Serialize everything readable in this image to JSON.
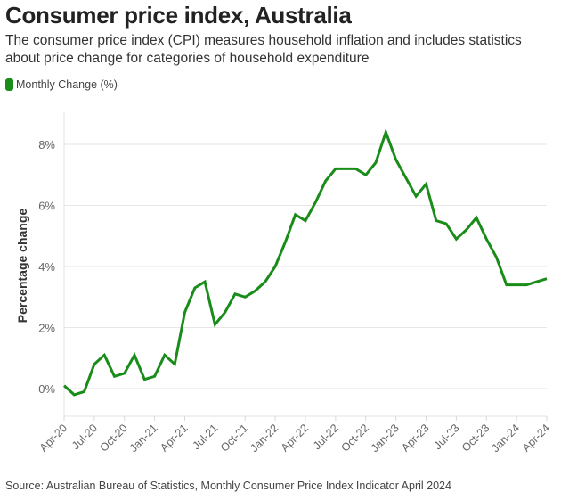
{
  "header": {
    "title": "Consumer price index, Australia",
    "subtitle": "The consumer price index (CPI) measures household inflation and includes statistics about price change for categories of household expenditure"
  },
  "legend": {
    "label": "Monthly Change (%)",
    "color": "#1a8c1a"
  },
  "footer": {
    "source": "Source: Australian Bureau of Statistics, Monthly Consumer Price Index Indicator April 2024"
  },
  "chart_data": {
    "type": "line",
    "title": "Consumer price index, Australia",
    "xlabel": "",
    "ylabel": "Percentage change",
    "ylim": [
      -1,
      9
    ],
    "y_ticks": [
      0,
      2,
      4,
      6,
      8
    ],
    "y_tick_labels": [
      "0%",
      "2%",
      "4%",
      "6%",
      "8%"
    ],
    "x_tick_labels": [
      "Apr-20",
      "Jul-20",
      "Oct-20",
      "Jan-21",
      "Apr-21",
      "Jul-21",
      "Oct-21",
      "Jan-22",
      "Apr-22",
      "Jul-22",
      "Oct-22",
      "Jan-23",
      "Apr-23",
      "Jul-23",
      "Oct-23",
      "Jan-24",
      "Apr-24"
    ],
    "grid": true,
    "legend_position": "top-left",
    "x": [
      "Apr-20",
      "May-20",
      "Jun-20",
      "Jul-20",
      "Aug-20",
      "Sep-20",
      "Oct-20",
      "Nov-20",
      "Dec-20",
      "Jan-21",
      "Feb-21",
      "Mar-21",
      "Apr-21",
      "May-21",
      "Jun-21",
      "Jul-21",
      "Aug-21",
      "Sep-21",
      "Oct-21",
      "Nov-21",
      "Dec-21",
      "Jan-22",
      "Feb-22",
      "Mar-22",
      "Apr-22",
      "May-22",
      "Jun-22",
      "Jul-22",
      "Aug-22",
      "Sep-22",
      "Oct-22",
      "Nov-22",
      "Dec-22",
      "Jan-23",
      "Feb-23",
      "Mar-23",
      "Apr-23",
      "May-23",
      "Jun-23",
      "Jul-23",
      "Aug-23",
      "Sep-23",
      "Oct-23",
      "Nov-23",
      "Dec-23",
      "Jan-24",
      "Feb-24",
      "Mar-24",
      "Apr-24"
    ],
    "series": [
      {
        "name": "Monthly Change (%)",
        "color": "#1a8c1a",
        "values": [
          0.1,
          -0.2,
          -0.1,
          0.8,
          1.1,
          0.4,
          0.5,
          1.1,
          0.3,
          0.4,
          1.1,
          0.8,
          2.5,
          3.3,
          3.5,
          2.1,
          2.5,
          3.1,
          3.0,
          3.2,
          3.5,
          4.0,
          4.8,
          5.7,
          5.5,
          6.1,
          6.8,
          7.2,
          7.2,
          7.2,
          7.0,
          7.4,
          8.4,
          7.5,
          6.9,
          6.3,
          6.7,
          5.5,
          5.4,
          4.9,
          5.2,
          5.6,
          4.9,
          4.3,
          3.4,
          3.4,
          3.4,
          3.5,
          3.6
        ]
      }
    ]
  }
}
